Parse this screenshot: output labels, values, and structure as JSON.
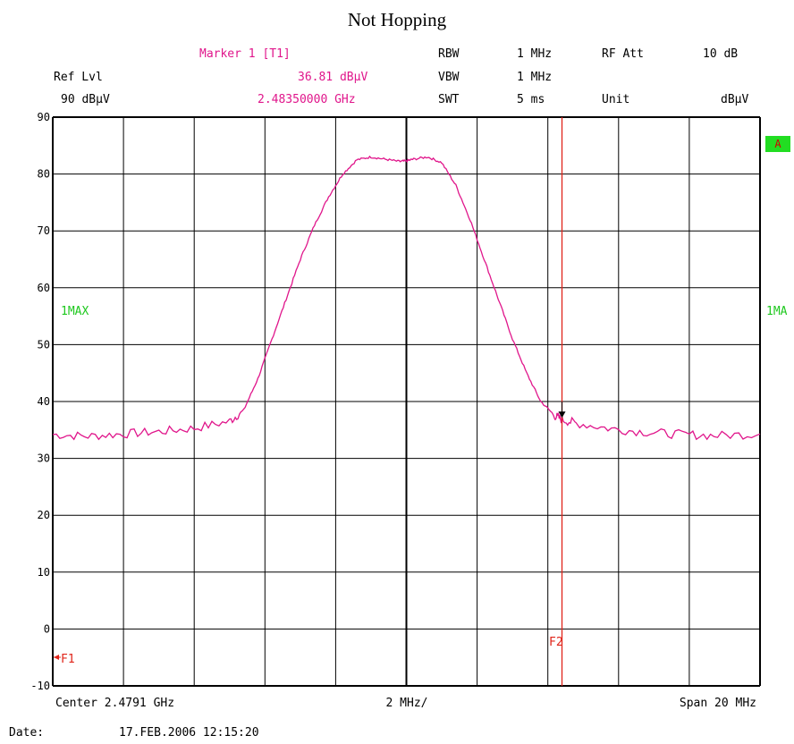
{
  "title": "Not Hopping",
  "header": {
    "marker_label": "Marker 1 [T1]",
    "marker_level": "36.81 dBµV",
    "marker_freq": "2.48350000 GHz",
    "ref_lvl_label": "Ref Lvl",
    "ref_lvl_value": "90 dBµV",
    "rbw_label": "RBW",
    "rbw_value": "1 MHz",
    "vbw_label": "VBW",
    "vbw_value": "1 MHz",
    "swt_label": "SWT",
    "swt_value": "5 ms",
    "rf_att_label": "RF Att",
    "rf_att_value": "10 dB",
    "unit_label": "Unit",
    "unit_value": "dBµV"
  },
  "footer": {
    "center": "Center 2.4791 GHz",
    "div": "2 MHz/",
    "span": "Span 20 MHz",
    "date_label": "Date:",
    "date_value": "17.FEB.2006  12:15:20"
  },
  "trace_labels": {
    "left": "1MAX",
    "right": "1MA",
    "a_badge": "A"
  },
  "lines": {
    "f1": "F1",
    "f2": "F2"
  },
  "colors": {
    "trace": "#e0168b",
    "marker_line": "#e0241a",
    "grid": "#000000",
    "label_green": "#1ec81e",
    "badge_bg": "#22dd22"
  },
  "chart_data": {
    "type": "line",
    "title": "Not Hopping",
    "xlabel": "",
    "ylabel": "",
    "xlim": [
      2.4691,
      2.4891
    ],
    "ylim": [
      -10,
      90
    ],
    "yticks": [
      90,
      80,
      70,
      60,
      50,
      40,
      30,
      20,
      10,
      0,
      -10
    ],
    "grid": true,
    "series": [
      {
        "name": "1MAX",
        "x": [
          2.4691,
          2.4701,
          2.4711,
          2.4721,
          2.4731,
          2.4741,
          2.4745,
          2.4749,
          2.4753,
          2.4757,
          2.4761,
          2.4765,
          2.4769,
          2.4773,
          2.4777,
          2.4781,
          2.4785,
          2.4789,
          2.4791,
          2.4793,
          2.4797,
          2.4801,
          2.4805,
          2.4809,
          2.4813,
          2.4817,
          2.4821,
          2.4825,
          2.4829,
          2.4833,
          2.4835,
          2.4839,
          2.4849,
          2.4859,
          2.4869,
          2.4879,
          2.4891
        ],
        "values": [
          34.2,
          33.9,
          34.3,
          34.7,
          35.3,
          36.5,
          38.5,
          44,
          51,
          58,
          65,
          71,
          76,
          80,
          82.5,
          83,
          82.6,
          82.2,
          82.3,
          82.6,
          83,
          82,
          78,
          72,
          65,
          58,
          51,
          45,
          40,
          37.5,
          36.8,
          36.2,
          35.2,
          34.6,
          34.2,
          34.0,
          34.3
        ]
      }
    ],
    "marker": {
      "name": "Marker 1 [T1]",
      "x": 2.4835,
      "y": 36.81
    },
    "vlines": [
      {
        "name": "F1",
        "x": 2.4691
      },
      {
        "name": "F2",
        "x": 2.4835
      }
    ]
  }
}
